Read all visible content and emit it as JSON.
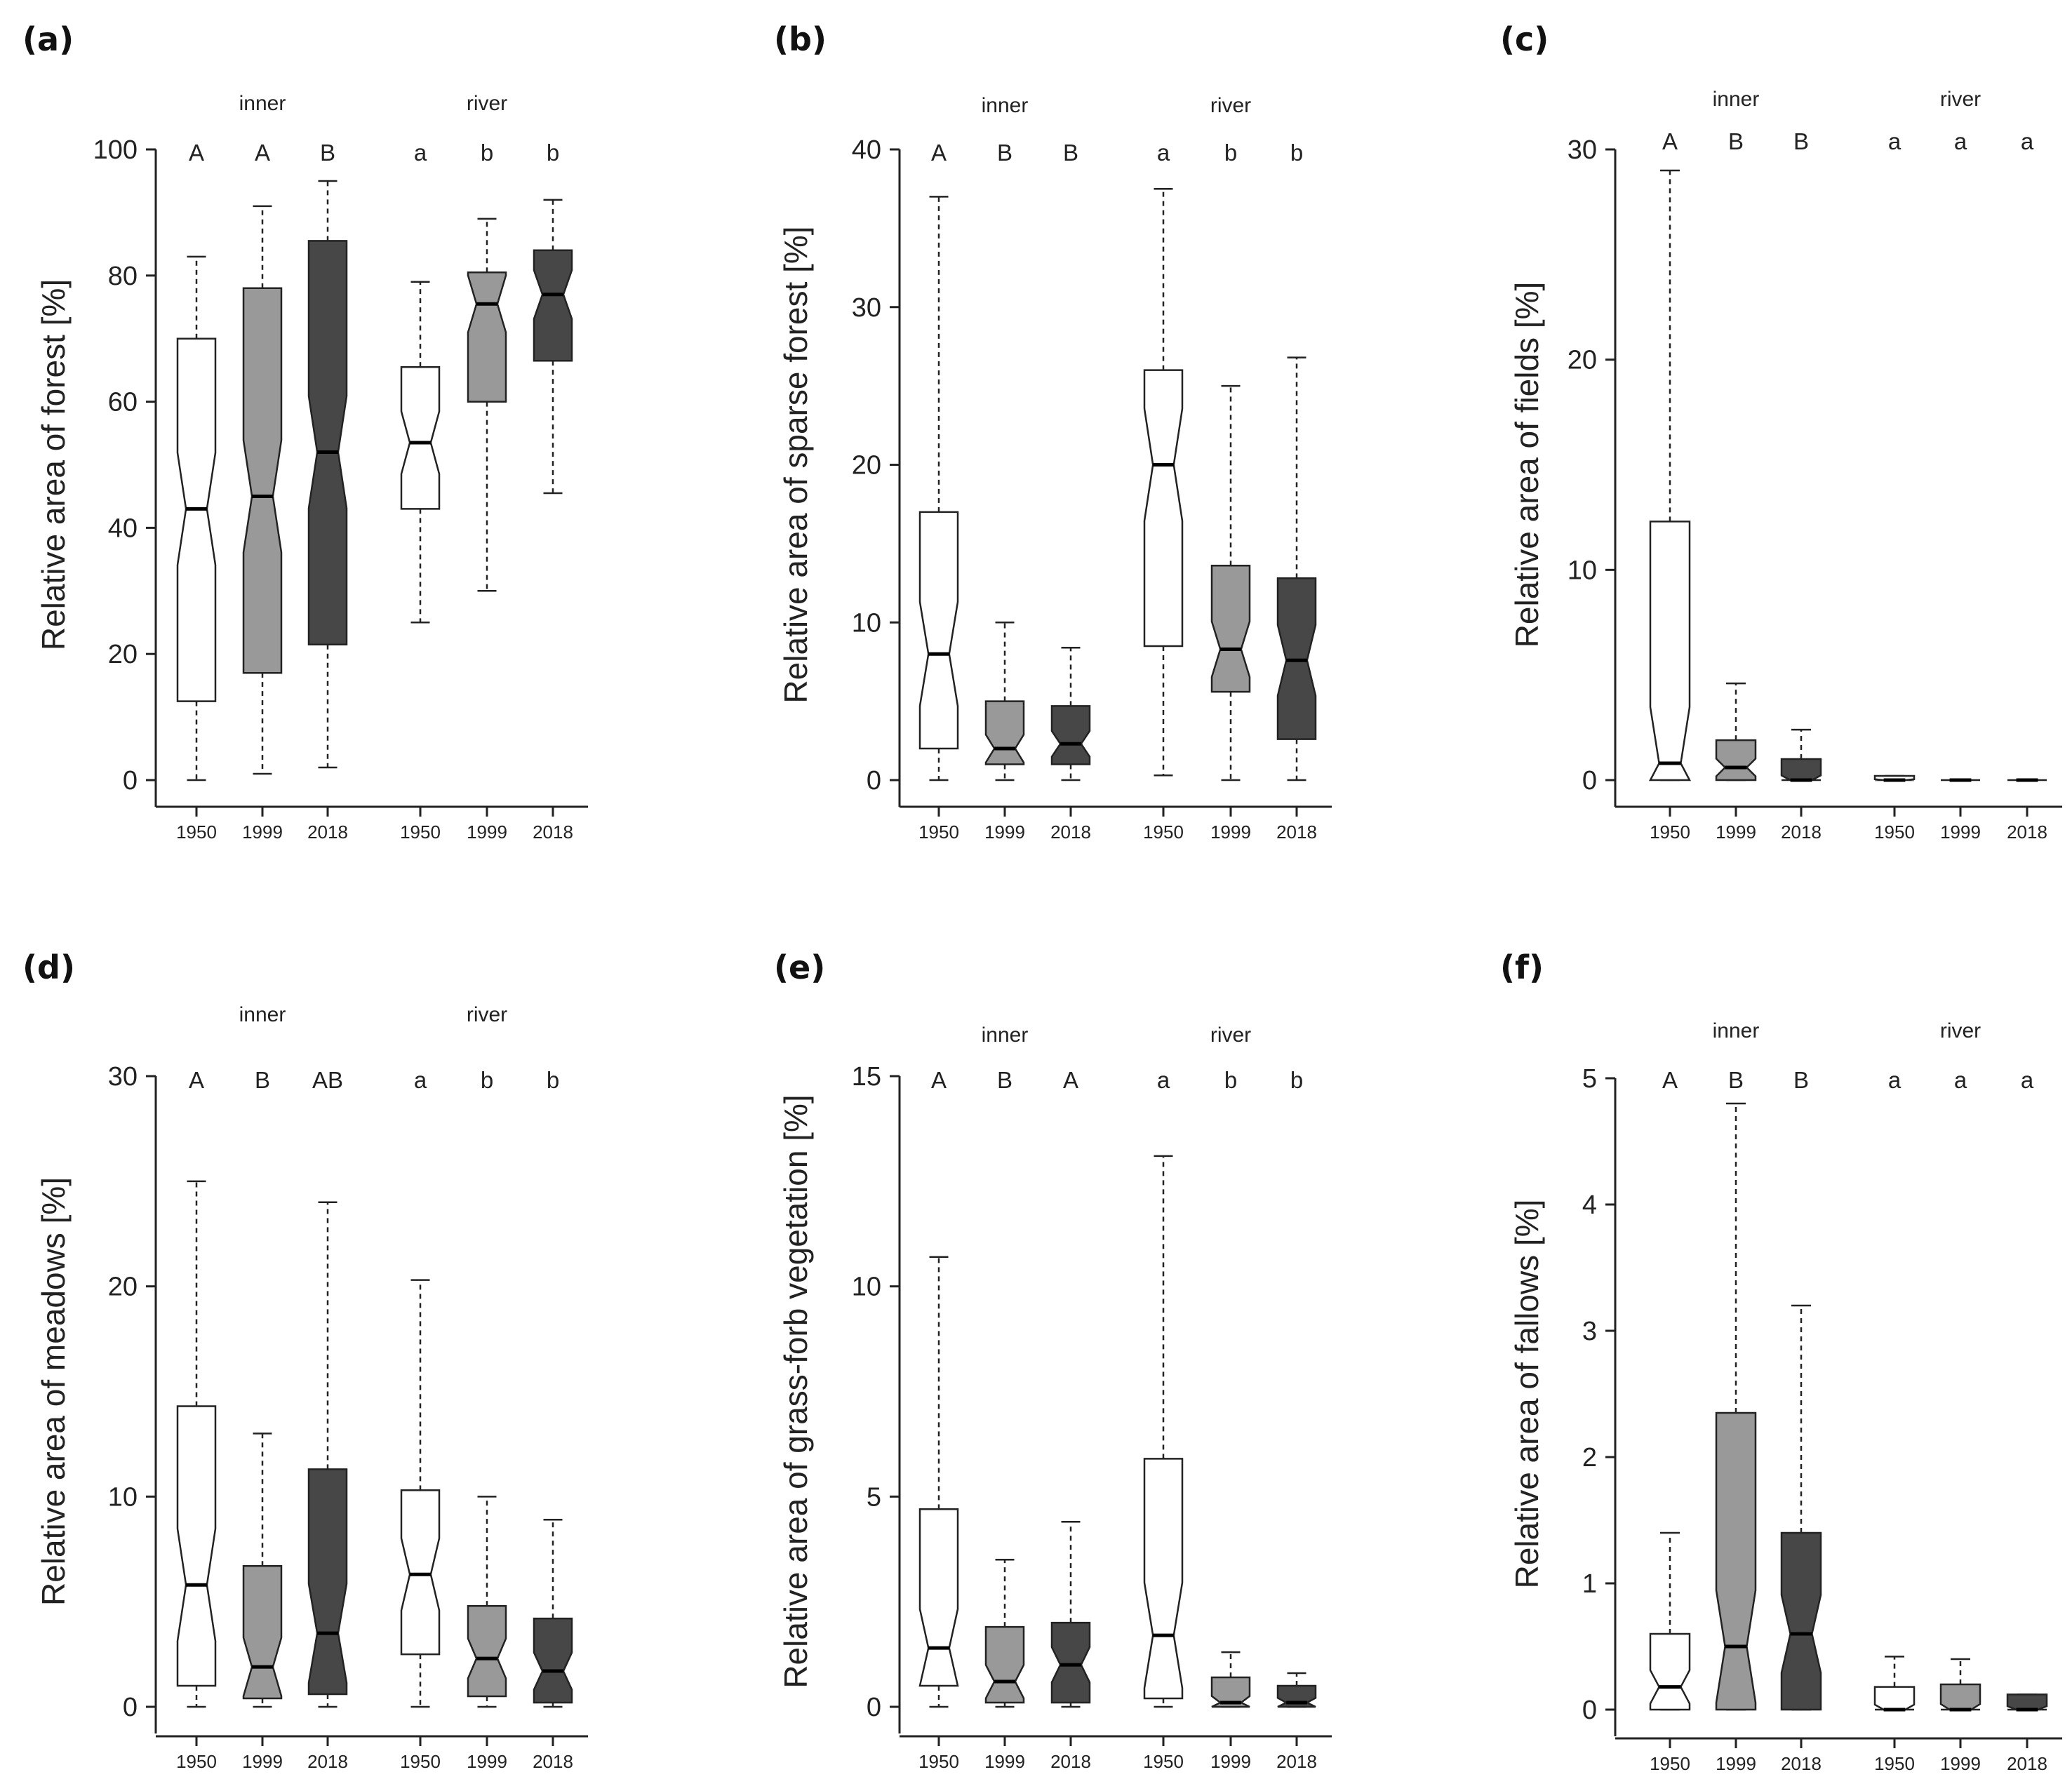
{
  "chart_data": [
    {
      "type": "box",
      "panel": "(a)",
      "ylabel": "Relative area of forest [%]",
      "ylim": [
        0,
        100
      ],
      "yticks": [
        0,
        20,
        40,
        60,
        80,
        100
      ],
      "groups": [
        "inner",
        "river"
      ],
      "years": [
        "1950",
        "1999",
        "2018"
      ],
      "letters": [
        "A",
        "A",
        "B",
        "a",
        "b",
        "b"
      ],
      "boxes": [
        {
          "group": "inner",
          "year": "1950",
          "fill": "#ffffff",
          "min": 0,
          "q1": 12.5,
          "median": 43,
          "q3": 70,
          "max": 83
        },
        {
          "group": "inner",
          "year": "1999",
          "fill": "#999999",
          "min": 1,
          "q1": 17,
          "median": 45,
          "q3": 78,
          "max": 91
        },
        {
          "group": "inner",
          "year": "2018",
          "fill": "#474747",
          "min": 2,
          "q1": 21.5,
          "median": 52,
          "q3": 85.5,
          "max": 95
        },
        {
          "group": "river",
          "year": "1950",
          "fill": "#ffffff",
          "min": 25,
          "q1": 43,
          "median": 53.5,
          "q3": 65.5,
          "max": 79
        },
        {
          "group": "river",
          "year": "1999",
          "fill": "#999999",
          "min": 30,
          "q1": 60,
          "median": 75.5,
          "q3": 80.5,
          "max": 89
        },
        {
          "group": "river",
          "year": "2018",
          "fill": "#474747",
          "min": 45.5,
          "q1": 66.5,
          "median": 77,
          "q3": 84,
          "max": 92
        }
      ]
    },
    {
      "type": "box",
      "panel": "(b)",
      "ylabel": "Relative area of sparse forest [%]",
      "ylim": [
        0,
        40
      ],
      "yticks": [
        0,
        10,
        20,
        30,
        40
      ],
      "groups": [
        "inner",
        "river"
      ],
      "years": [
        "1950",
        "1999",
        "2018"
      ],
      "letters": [
        "A",
        "B",
        "B",
        "a",
        "b",
        "b"
      ],
      "boxes": [
        {
          "group": "inner",
          "year": "1950",
          "fill": "#ffffff",
          "min": 0,
          "q1": 2,
          "median": 8,
          "q3": 17,
          "max": 37
        },
        {
          "group": "inner",
          "year": "1999",
          "fill": "#999999",
          "min": 0,
          "q1": 1,
          "median": 2,
          "q3": 5,
          "max": 10
        },
        {
          "group": "inner",
          "year": "2018",
          "fill": "#474747",
          "min": 0,
          "q1": 1,
          "median": 2.3,
          "q3": 4.7,
          "max": 8.4
        },
        {
          "group": "river",
          "year": "1950",
          "fill": "#ffffff",
          "min": 0.3,
          "q1": 8.5,
          "median": 20,
          "q3": 26,
          "max": 37.5
        },
        {
          "group": "river",
          "year": "1999",
          "fill": "#999999",
          "min": 0,
          "q1": 5.6,
          "median": 8.3,
          "q3": 13.6,
          "max": 25
        },
        {
          "group": "river",
          "year": "2018",
          "fill": "#474747",
          "min": 0,
          "q1": 2.6,
          "median": 7.6,
          "q3": 12.8,
          "max": 26.8
        }
      ]
    },
    {
      "type": "box",
      "panel": "(c)",
      "ylabel": "Relative area of fields [%]",
      "ylim": [
        0,
        30
      ],
      "yticks": [
        0,
        10,
        20,
        30
      ],
      "groups": [
        "inner",
        "river"
      ],
      "years": [
        "1950",
        "1999",
        "2018"
      ],
      "letters": [
        "A",
        "B",
        "B",
        "a",
        "a",
        "a"
      ],
      "boxes": [
        {
          "group": "inner",
          "year": "1950",
          "fill": "#ffffff",
          "min": 0,
          "q1": 0,
          "median": 0.8,
          "q3": 12.3,
          "max": 29
        },
        {
          "group": "inner",
          "year": "1999",
          "fill": "#999999",
          "min": 0,
          "q1": 0,
          "median": 0.6,
          "q3": 1.9,
          "max": 4.6
        },
        {
          "group": "inner",
          "year": "2018",
          "fill": "#474747",
          "min": 0,
          "q1": 0,
          "median": 0,
          "q3": 1,
          "max": 2.4
        },
        {
          "group": "river",
          "year": "1950",
          "fill": "#ffffff",
          "min": 0,
          "q1": 0,
          "median": 0,
          "q3": 0.2,
          "max": 0.2
        },
        {
          "group": "river",
          "year": "1999",
          "fill": "#999999",
          "min": 0,
          "q1": 0,
          "median": 0,
          "q3": 0,
          "max": 0
        },
        {
          "group": "river",
          "year": "2018",
          "fill": "#474747",
          "min": 0,
          "q1": 0,
          "median": 0,
          "q3": 0,
          "max": 0
        }
      ]
    },
    {
      "type": "box",
      "panel": "(d)",
      "ylabel": "Relative area of meadows [%]",
      "ylim": [
        0,
        30
      ],
      "yticks": [
        0,
        10,
        20,
        30
      ],
      "groups": [
        "inner",
        "river"
      ],
      "years": [
        "1950",
        "1999",
        "2018"
      ],
      "letters": [
        "A",
        "B",
        "AB",
        "a",
        "b",
        "b"
      ],
      "boxes": [
        {
          "group": "inner",
          "year": "1950",
          "fill": "#ffffff",
          "min": 0,
          "q1": 1,
          "median": 5.8,
          "q3": 14.3,
          "max": 25
        },
        {
          "group": "inner",
          "year": "1999",
          "fill": "#999999",
          "min": 0,
          "q1": 0.4,
          "median": 1.9,
          "q3": 6.7,
          "max": 13
        },
        {
          "group": "inner",
          "year": "2018",
          "fill": "#474747",
          "min": 0,
          "q1": 0.6,
          "median": 3.5,
          "q3": 11.3,
          "max": 24
        },
        {
          "group": "river",
          "year": "1950",
          "fill": "#ffffff",
          "min": 0,
          "q1": 2.5,
          "median": 6.3,
          "q3": 10.3,
          "max": 20.3
        },
        {
          "group": "river",
          "year": "1999",
          "fill": "#999999",
          "min": 0,
          "q1": 0.5,
          "median": 2.3,
          "q3": 4.8,
          "max": 10
        },
        {
          "group": "river",
          "year": "2018",
          "fill": "#474747",
          "min": 0,
          "q1": 0.2,
          "median": 1.7,
          "q3": 4.2,
          "max": 8.9
        }
      ]
    },
    {
      "type": "box",
      "panel": "(e)",
      "ylabel": "Relative area of grass-forb vegetation [%]",
      "ylim": [
        0,
        15
      ],
      "yticks": [
        0,
        5,
        10,
        15
      ],
      "groups": [
        "inner",
        "river"
      ],
      "years": [
        "1950",
        "1999",
        "2018"
      ],
      "letters": [
        "A",
        "B",
        "A",
        "a",
        "b",
        "b"
      ],
      "boxes": [
        {
          "group": "inner",
          "year": "1950",
          "fill": "#ffffff",
          "min": 0,
          "q1": 0.5,
          "median": 1.4,
          "q3": 4.7,
          "max": 10.7
        },
        {
          "group": "inner",
          "year": "1999",
          "fill": "#999999",
          "min": 0,
          "q1": 0.1,
          "median": 0.6,
          "q3": 1.9,
          "max": 3.5
        },
        {
          "group": "inner",
          "year": "2018",
          "fill": "#474747",
          "min": 0,
          "q1": 0.1,
          "median": 1,
          "q3": 2,
          "max": 4.4
        },
        {
          "group": "river",
          "year": "1950",
          "fill": "#ffffff",
          "min": 0,
          "q1": 0.2,
          "median": 1.7,
          "q3": 5.9,
          "max": 13.1
        },
        {
          "group": "river",
          "year": "1999",
          "fill": "#999999",
          "min": 0,
          "q1": 0,
          "median": 0.1,
          "q3": 0.7,
          "max": 1.3
        },
        {
          "group": "river",
          "year": "2018",
          "fill": "#474747",
          "min": 0,
          "q1": 0,
          "median": 0.1,
          "q3": 0.5,
          "max": 0.8
        }
      ]
    },
    {
      "type": "box",
      "panel": "(f)",
      "ylabel": "Relative area of fallows [%]",
      "ylim": [
        0,
        5
      ],
      "yticks": [
        0,
        1,
        2,
        3,
        4,
        5
      ],
      "groups": [
        "inner",
        "river"
      ],
      "years": [
        "1950",
        "1999",
        "2018"
      ],
      "letters": [
        "A",
        "B",
        "B",
        "a",
        "a",
        "a"
      ],
      "boxes": [
        {
          "group": "inner",
          "year": "1950",
          "fill": "#ffffff",
          "min": 0,
          "q1": 0,
          "median": 0.18,
          "q3": 0.6,
          "max": 1.4
        },
        {
          "group": "inner",
          "year": "1999",
          "fill": "#999999",
          "min": 0,
          "q1": 0,
          "median": 0.5,
          "q3": 2.35,
          "max": 4.8
        },
        {
          "group": "inner",
          "year": "2018",
          "fill": "#474747",
          "min": 0,
          "q1": 0,
          "median": 0.6,
          "q3": 1.4,
          "max": 3.2
        },
        {
          "group": "river",
          "year": "1950",
          "fill": "#ffffff",
          "min": 0,
          "q1": 0,
          "median": 0,
          "q3": 0.18,
          "max": 0.42
        },
        {
          "group": "river",
          "year": "1999",
          "fill": "#999999",
          "min": 0,
          "q1": 0,
          "median": 0,
          "q3": 0.2,
          "max": 0.4
        },
        {
          "group": "river",
          "year": "2018",
          "fill": "#474747",
          "min": 0,
          "q1": 0,
          "median": 0,
          "q3": 0.12,
          "max": 0.12
        }
      ]
    }
  ]
}
